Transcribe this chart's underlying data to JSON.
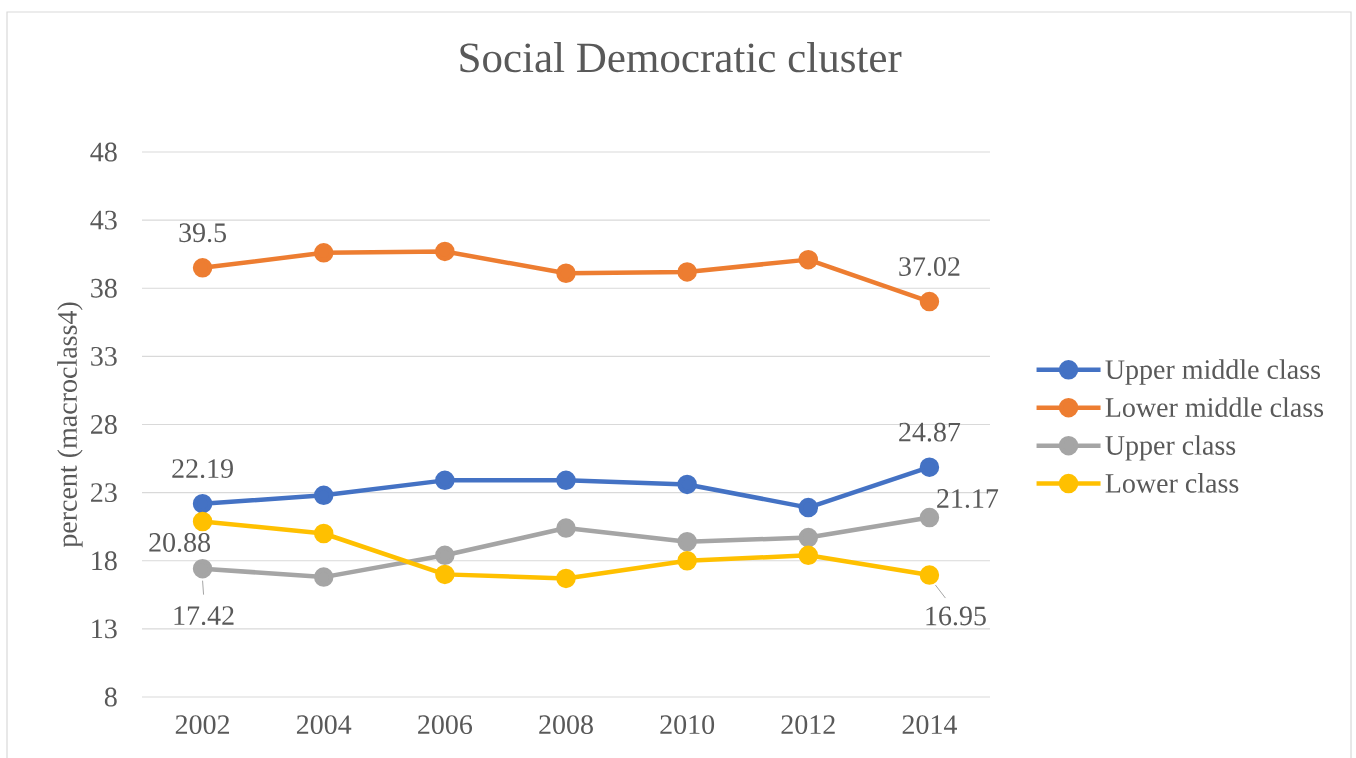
{
  "chart_data": {
    "type": "line",
    "title": "Social Democratic cluster",
    "ylabel": "percent (macroclass4)",
    "categories": [
      "2002",
      "2004",
      "2006",
      "2008",
      "2010",
      "2012",
      "2014"
    ],
    "series": [
      {
        "name": "Upper middle class",
        "color": "#4472c4",
        "values": [
          22.19,
          22.8,
          23.9,
          23.9,
          23.6,
          21.9,
          24.87
        ],
        "value_labels": [
          "22.19",
          null,
          null,
          null,
          null,
          null,
          "24.87"
        ]
      },
      {
        "name": "Lower middle class",
        "color": "#ed7d31",
        "values": [
          39.5,
          40.6,
          40.7,
          39.1,
          39.2,
          40.1,
          37.02
        ],
        "value_labels": [
          "39.5",
          null,
          null,
          null,
          null,
          null,
          "37.02"
        ]
      },
      {
        "name": "Upper class",
        "color": "#a5a5a5",
        "values": [
          17.42,
          16.8,
          18.4,
          20.4,
          19.4,
          19.7,
          21.17
        ],
        "value_labels": [
          "17.42",
          null,
          null,
          null,
          null,
          null,
          "21.17"
        ]
      },
      {
        "name": "Lower class",
        "color": "#ffc000",
        "values": [
          20.88,
          20.0,
          17.0,
          16.7,
          18.0,
          18.4,
          16.95
        ],
        "value_labels": [
          "20.88",
          null,
          null,
          null,
          null,
          null,
          "16.95"
        ]
      }
    ],
    "ylim": [
      8,
      48
    ],
    "yticks": [
      8,
      13,
      18,
      23,
      28,
      33,
      38,
      43,
      48
    ],
    "grid": "y",
    "legend": "right",
    "marker": "circle",
    "line_style": "solid"
  }
}
